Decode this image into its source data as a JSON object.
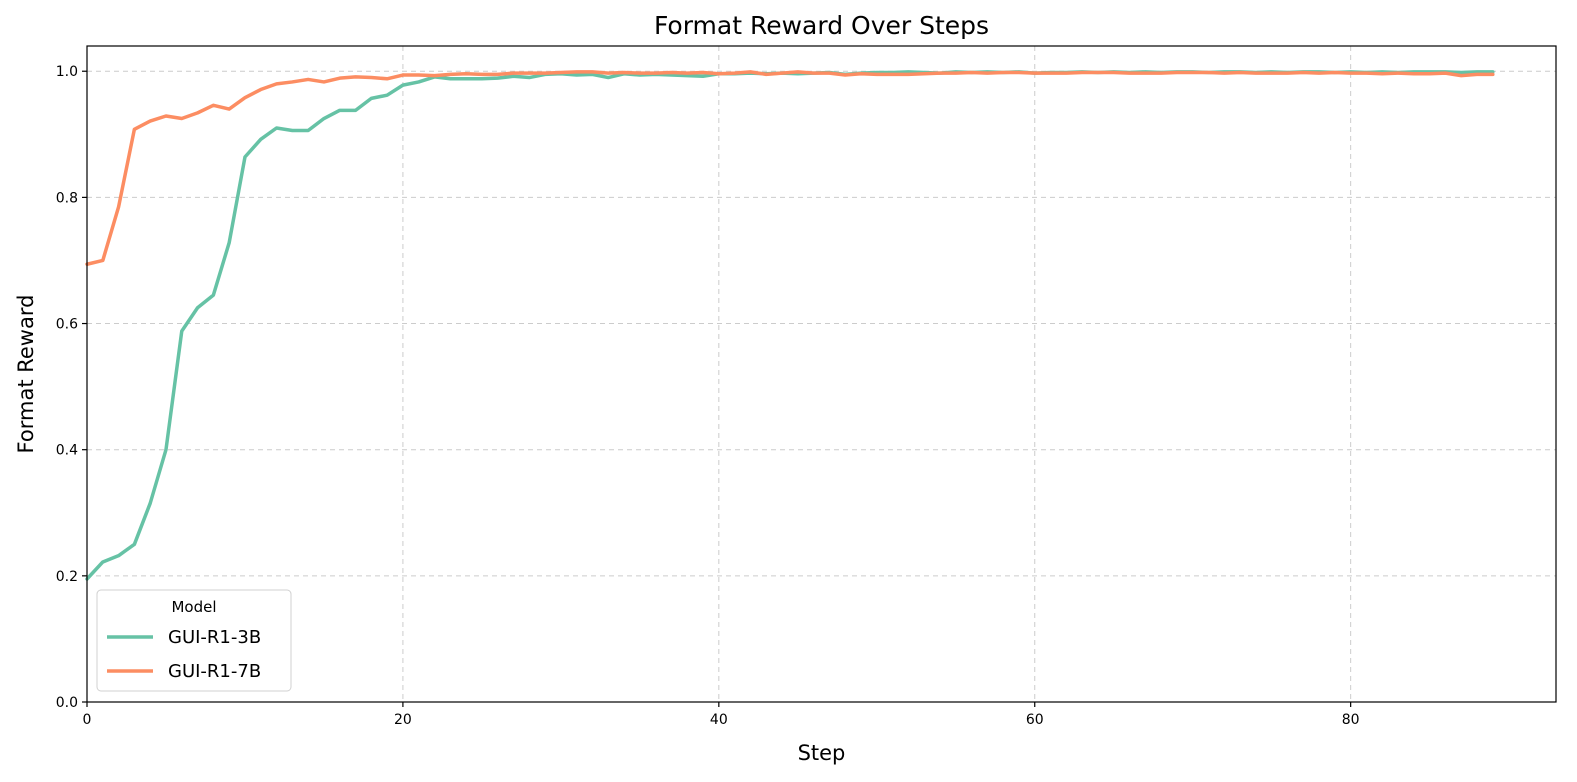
{
  "chart_data": {
    "type": "line",
    "title": "Format Reward Over Steps",
    "xlabel": "Step",
    "ylabel": "Format Reward",
    "xlim": [
      0,
      93
    ],
    "ylim": [
      0,
      1.04
    ],
    "xticks": [
      0,
      20,
      40,
      60,
      80
    ],
    "yticks": [
      0.0,
      0.2,
      0.4,
      0.6,
      0.8,
      1.0
    ],
    "xtick_labels": [
      "0",
      "20",
      "40",
      "60",
      "80"
    ],
    "ytick_labels": [
      "0.0",
      "0.2",
      "0.4",
      "0.6",
      "0.8",
      "1.0"
    ],
    "grid": true,
    "legend": {
      "title": "Model",
      "position": "lower-left"
    },
    "series": [
      {
        "name": "GUI-R1-3B",
        "color": "#66c2a5",
        "values": [
          0.195,
          0.222,
          0.232,
          0.25,
          0.315,
          0.4,
          0.588,
          0.625,
          0.645,
          0.728,
          0.864,
          0.892,
          0.91,
          0.906,
          0.906,
          0.925,
          0.938,
          0.938,
          0.957,
          0.962,
          0.978,
          0.983,
          0.991,
          0.988,
          0.988,
          0.988,
          0.989,
          0.992,
          0.99,
          0.995,
          0.996,
          0.994,
          0.995,
          0.99,
          0.996,
          0.994,
          0.995,
          0.994,
          0.993,
          0.992,
          0.996,
          0.996,
          0.997,
          0.996,
          0.997,
          0.996,
          0.997,
          0.998,
          0.995,
          0.997,
          0.998,
          0.998,
          0.999,
          0.998,
          0.997,
          0.999,
          0.998,
          0.999,
          0.998,
          0.999,
          0.997,
          0.998,
          0.998,
          0.999,
          0.998,
          0.999,
          0.998,
          0.999,
          0.998,
          0.999,
          0.999,
          0.998,
          0.999,
          0.999,
          0.998,
          0.999,
          0.998,
          0.999,
          0.999,
          0.998,
          0.999,
          0.998,
          0.999,
          0.998,
          0.999,
          0.999,
          0.999,
          0.998,
          0.999,
          0.999
        ]
      },
      {
        "name": "GUI-R1-7B",
        "color": "#fc8d62",
        "values": [
          0.694,
          0.7,
          0.785,
          0.908,
          0.921,
          0.929,
          0.925,
          0.934,
          0.946,
          0.94,
          0.958,
          0.971,
          0.98,
          0.983,
          0.987,
          0.983,
          0.989,
          0.991,
          0.99,
          0.988,
          0.994,
          0.994,
          0.993,
          0.995,
          0.996,
          0.995,
          0.995,
          0.997,
          0.997,
          0.997,
          0.998,
          0.999,
          0.999,
          0.997,
          0.998,
          0.997,
          0.997,
          0.998,
          0.997,
          0.998,
          0.996,
          0.997,
          0.999,
          0.995,
          0.997,
          0.999,
          0.997,
          0.997,
          0.994,
          0.996,
          0.995,
          0.995,
          0.995,
          0.996,
          0.997,
          0.997,
          0.998,
          0.997,
          0.998,
          0.998,
          0.997,
          0.997,
          0.997,
          0.998,
          0.998,
          0.998,
          0.997,
          0.997,
          0.997,
          0.998,
          0.998,
          0.998,
          0.997,
          0.998,
          0.997,
          0.997,
          0.997,
          0.998,
          0.997,
          0.998,
          0.997,
          0.997,
          0.996,
          0.997,
          0.996,
          0.996,
          0.997,
          0.993,
          0.995,
          0.995
        ]
      }
    ]
  }
}
